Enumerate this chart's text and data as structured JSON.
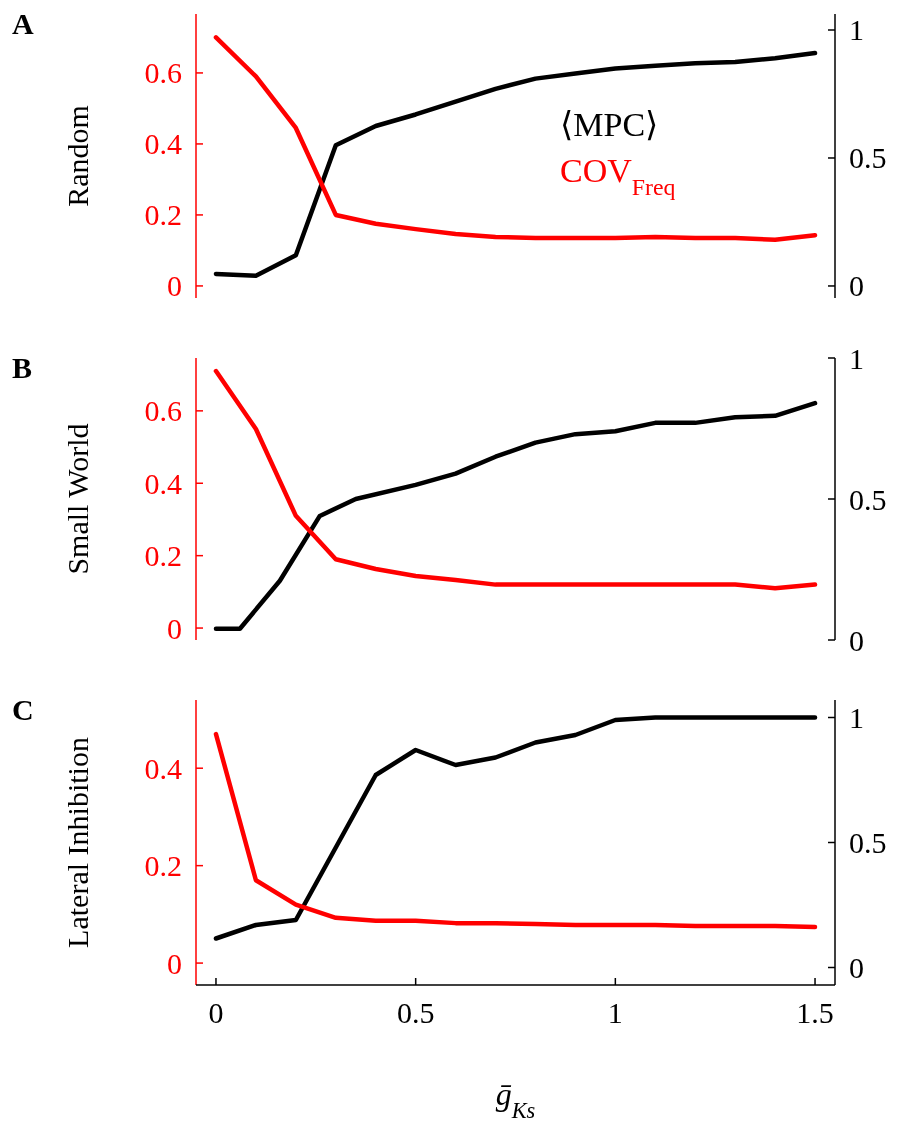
{
  "chart_data": [
    {
      "type": "line",
      "title": "A",
      "ylabel": "Random",
      "x": [
        0,
        0.1,
        0.2,
        0.3,
        0.4,
        0.5,
        0.6,
        0.7,
        0.8,
        0.9,
        1.0,
        1.1,
        1.2,
        1.3,
        1.4,
        1.5
      ],
      "xlim": [
        -0.05,
        1.55
      ],
      "ylim": [
        -0.034,
        0.766
      ],
      "yticks": [
        0,
        0.2,
        0.4,
        0.6
      ],
      "y2lim": [
        -0.047,
        1.0625
      ],
      "y2ticks": [
        0,
        0.5,
        1
      ],
      "tick_labels": "y",
      "legend": "right",
      "line_style": "solid",
      "series": [
        {
          "name": "⟨MPC⟩",
          "color": "#000000",
          "axis": "y2",
          "values": [
            0.047,
            0.04,
            0.12,
            0.55,
            0.625,
            0.67,
            0.72,
            0.77,
            0.81,
            0.83,
            0.85,
            0.86,
            0.87,
            0.875,
            0.89,
            0.91
          ]
        },
        {
          "name": "COV$_{Freq}$",
          "color": "#ff0000",
          "axis": "y",
          "values": [
            0.7,
            0.59,
            0.445,
            0.2,
            0.175,
            0.16,
            0.146,
            0.138,
            0.135,
            0.135,
            0.135,
            0.138,
            0.135,
            0.135,
            0.13,
            0.143
          ]
        }
      ]
    },
    {
      "type": "line",
      "title": "B",
      "ylabel": "Small World",
      "x": [
        0,
        0.06,
        0.16,
        0.26,
        0.35,
        0.5,
        0.6,
        0.7,
        0.8,
        0.9,
        1.0,
        1.1,
        1.2,
        1.3,
        1.4,
        1.5
      ],
      "xlim": [
        -0.05,
        1.55
      ],
      "ylim": [
        -0.033,
        0.746
      ],
      "yticks": [
        0,
        0.2,
        0.4,
        0.6
      ],
      "y2lim": [
        0,
        1
      ],
      "y2ticks": [
        0,
        0.5,
        1
      ],
      "tick_labels": "y",
      "line_style": "solid",
      "series": [
        {
          "color": "#000000",
          "axis": "y2",
          "values": [
            0.04,
            0.04,
            0.21,
            0.44,
            0.5,
            0.55,
            0.59,
            0.65,
            0.7,
            0.73,
            0.74,
            0.77,
            0.77,
            0.79,
            0.795,
            0.84
          ]
        },
        {
          "color": "#ff0000",
          "axis": "y",
          "x": [
            0,
            0.1,
            0.2,
            0.3,
            0.4,
            0.5,
            0.6,
            0.7,
            0.8,
            0.9,
            1.0,
            1.1,
            1.2,
            1.3,
            1.4,
            1.5
          ],
          "values": [
            0.71,
            0.55,
            0.31,
            0.19,
            0.163,
            0.144,
            0.133,
            0.12,
            0.12,
            0.12,
            0.12,
            0.12,
            0.12,
            0.12,
            0.11,
            0.12
          ]
        }
      ]
    },
    {
      "type": "line",
      "title": "C",
      "ylabel": "Lateral Inhibition",
      "xlabel": "ḡ$_{Ks}$",
      "x": [
        0,
        0.1,
        0.2,
        0.3,
        0.4,
        0.5,
        0.6,
        0.7,
        0.8,
        0.9,
        1.0,
        1.1,
        1.2,
        1.3,
        1.4,
        1.5
      ],
      "xlim": [
        -0.05,
        1.55
      ],
      "xticks": [
        0,
        0.5,
        1,
        1.5
      ],
      "ylim": [
        -0.045,
        0.54
      ],
      "yticks": [
        0,
        0.2,
        0.4
      ],
      "y2lim": [
        -0.07,
        1.07
      ],
      "y2ticks": [
        0,
        0.5,
        1
      ],
      "line_style": "solid",
      "series": [
        {
          "color": "#000000",
          "axis": "y2",
          "values": [
            0.116,
            0.17,
            0.19,
            0.48,
            0.77,
            0.87,
            0.81,
            0.84,
            0.9,
            0.93,
            0.99,
            1.0,
            1.0,
            1.0,
            1.0,
            1.0
          ]
        },
        {
          "color": "#ff0000",
          "axis": "y",
          "values": [
            0.47,
            0.17,
            0.12,
            0.093,
            0.087,
            0.087,
            0.082,
            0.082,
            0.08,
            0.078,
            0.078,
            0.078,
            0.076,
            0.076,
            0.076,
            0.074
          ]
        }
      ]
    }
  ]
}
